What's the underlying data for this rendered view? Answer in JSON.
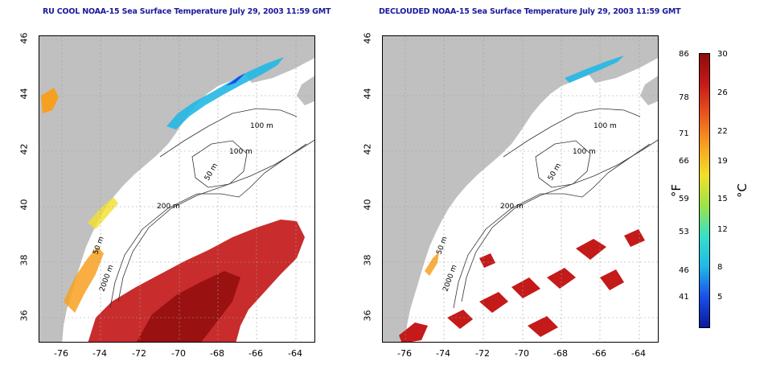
{
  "panels": [
    {
      "title": "RU COOL NOAA-15 Sea Surface Temperature July 29, 2003 11:59 GMT"
    },
    {
      "title": "DECLOUDED NOAA-15 Sea Surface Temperature July 29, 2003 11:59 GMT"
    }
  ],
  "axes": {
    "x_ticks": [
      "-76",
      "-74",
      "-72",
      "-70",
      "-68",
      "-66",
      "-64"
    ],
    "y_ticks": [
      "36",
      "38",
      "40",
      "42",
      "44",
      "46"
    ]
  },
  "contours": {
    "labels": [
      "100 m",
      "100 m",
      "50 m",
      "200 m",
      "50 m",
      "2000 m"
    ]
  },
  "colorbar": {
    "fahrenheit_ticks": [
      "86",
      "78",
      "71",
      "66",
      "59",
      "53",
      "46",
      "41"
    ],
    "celsius_ticks": [
      "30",
      "26",
      "22",
      "19",
      "15",
      "12",
      "8",
      "5"
    ],
    "unit_f": "°F",
    "unit_c": "°C",
    "colors": [
      "#0a1a9a",
      "#1a4ee8",
      "#22b8e6",
      "#36e0c8",
      "#9be34a",
      "#f2e02a",
      "#f7a020",
      "#e9561e",
      "#c41a1a",
      "#8e0b0b"
    ]
  },
  "colors": {
    "land": "#c0c0c0",
    "title": "#1a1a9c",
    "grid": "#a0a0a0",
    "warm_water": "#c41a1a",
    "cool_water": "#22b8e6"
  }
}
